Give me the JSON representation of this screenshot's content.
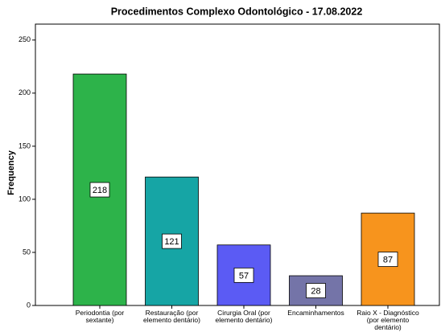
{
  "chart_data": {
    "type": "bar",
    "title": "Procedimentos Complexo Odontológico - 17.08.2022",
    "y_label": "Frequency",
    "categories": [
      "Periodontia (por sextante)",
      "Restauração (por elemento dentário)",
      "Cirurgia Oral (por elemento dentário)",
      "Encaminhamentos",
      "Raio X - Diagnóstico (por elemento dentário)"
    ],
    "values": [
      218,
      121,
      57,
      28,
      87
    ],
    "colors": [
      "#2db34a",
      "#16a5a5",
      "#5b5bf4",
      "#7474a8",
      "#f7941d"
    ],
    "ylim": [
      0,
      265
    ],
    "yticks": [
      0,
      50,
      100,
      150,
      200,
      250
    ],
    "grid": false
  }
}
